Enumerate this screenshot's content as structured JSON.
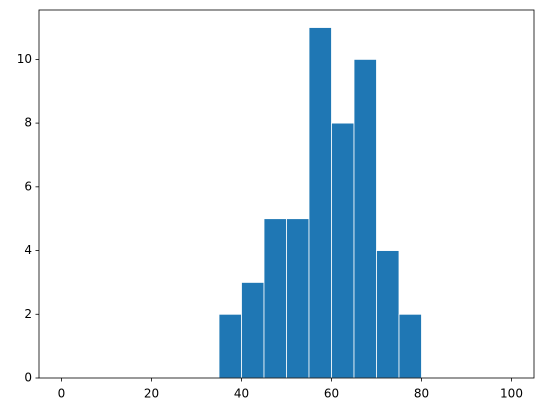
{
  "chart_data": {
    "type": "histogram",
    "bins": [
      0,
      5,
      10,
      15,
      20,
      25,
      30,
      35,
      40,
      45,
      50,
      55,
      60,
      65,
      70,
      75,
      80,
      85,
      90,
      95,
      100
    ],
    "values": [
      0,
      0,
      0,
      0,
      0,
      0,
      0,
      2,
      3,
      5,
      5,
      11,
      8,
      10,
      4,
      2,
      0,
      0,
      0,
      0
    ],
    "color": "#1f77b4",
    "xlim": [
      -5,
      105
    ],
    "xticks": [
      0,
      20,
      40,
      60,
      80,
      100
    ],
    "ylim": [
      0,
      11.55
    ],
    "yticks": [
      0,
      2,
      4,
      6,
      8,
      10
    ]
  }
}
